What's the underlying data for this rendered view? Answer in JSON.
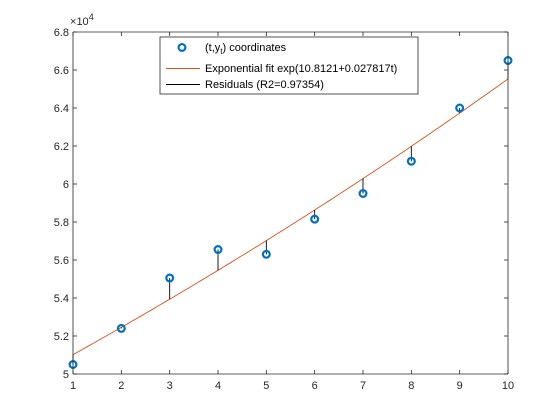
{
  "chart_data": {
    "type": "scatter",
    "x": [
      1,
      2,
      3,
      4,
      5,
      6,
      7,
      8,
      9,
      10
    ],
    "y": [
      50500,
      52400,
      55050,
      56550,
      56300,
      58150,
      59500,
      61200,
      64000,
      66500
    ],
    "fit": {
      "label": "Exponential fit exp(10.8121+0.027817t)",
      "a": 10.8121,
      "b": 0.027817
    },
    "series": [
      {
        "name": "(t,y_t) coordinates",
        "name_main": "(t,y",
        "name_sub": "t",
        "name_tail": ") coordinates",
        "color": "#0072BD"
      },
      {
        "name": "Exponential fit exp(10.8121+0.027817t)",
        "color": "#D95319"
      },
      {
        "name": "Residuals (R2=0.97354)",
        "color": "#000000"
      }
    ],
    "xlim": [
      1,
      10
    ],
    "ylim": [
      50000,
      68000
    ],
    "xticks": [
      "1",
      "2",
      "3",
      "4",
      "5",
      "6",
      "7",
      "8",
      "9",
      "10"
    ],
    "yticks": [
      "5",
      "5.2",
      "5.4",
      "5.6",
      "5.8",
      "6",
      "6.2",
      "6.4",
      "6.6",
      "6.8"
    ],
    "ytick_values": [
      50000,
      52000,
      54000,
      56000,
      58000,
      60000,
      62000,
      64000,
      66000,
      68000
    ],
    "exponent_base": "10",
    "exponent_power": "4",
    "grid": false,
    "legend_position": "top"
  }
}
